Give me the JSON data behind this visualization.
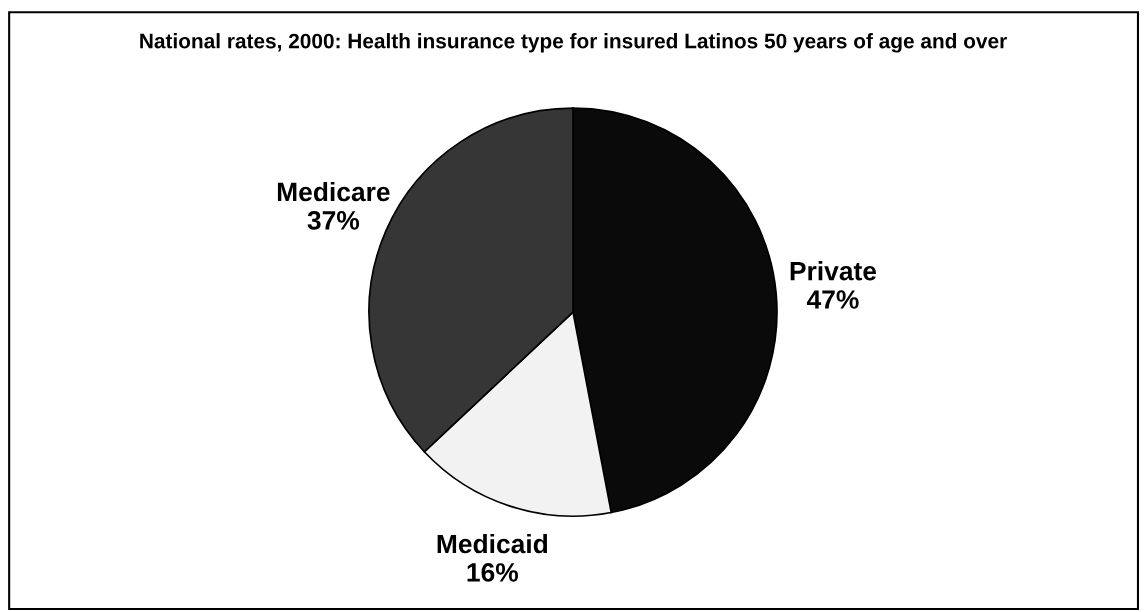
{
  "chart_data": {
    "type": "pie",
    "title": "National rates, 2000: Health insurance type for insured Latinos 50 years of age and over",
    "categories": [
      "Private",
      "Medicaid",
      "Medicare"
    ],
    "values": [
      47,
      16,
      37
    ],
    "colors": [
      "#0a0a0a",
      "#f2f2f2",
      "#363636"
    ],
    "value_labels": [
      "47%",
      "16%",
      "37%"
    ],
    "legend": false
  }
}
